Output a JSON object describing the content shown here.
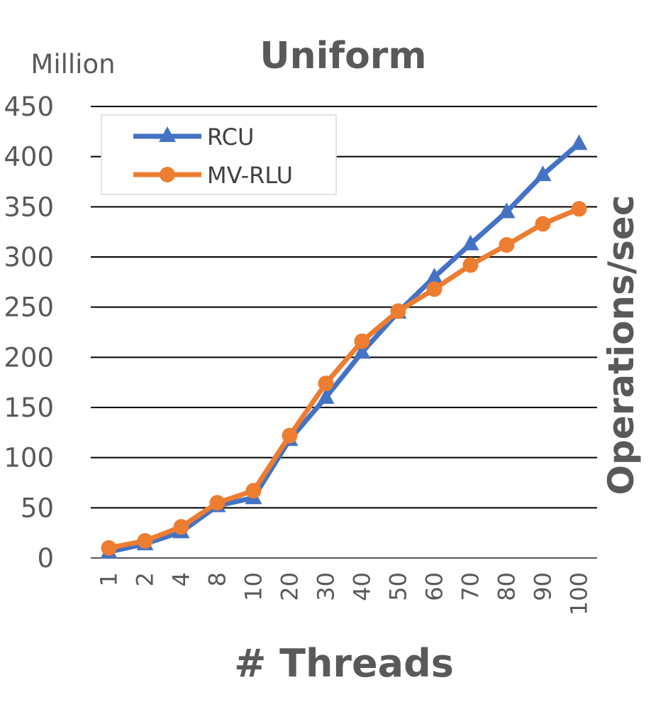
{
  "chart_data": {
    "type": "line",
    "title": "Uniform",
    "unit_label": "Million",
    "xlabel": "# Threads",
    "ylabel": "Operations/sec",
    "categories": [
      "1",
      "2",
      "4",
      "8",
      "10",
      "20",
      "30",
      "40",
      "50",
      "60",
      "70",
      "80",
      "90",
      "100"
    ],
    "ylim": [
      0,
      450
    ],
    "yticks": [
      0,
      50,
      100,
      150,
      200,
      250,
      300,
      350,
      400,
      450
    ],
    "grid": true,
    "legend_position": "top-left",
    "series": [
      {
        "name": "RCU",
        "color": "#4472C4",
        "marker": "triangle",
        "values": [
          6,
          14,
          26,
          52,
          60,
          118,
          160,
          205,
          245,
          280,
          313,
          345,
          382,
          413
        ]
      },
      {
        "name": "MV-RLU",
        "color": "#ED7D31",
        "marker": "circle",
        "values": [
          10,
          17,
          31,
          55,
          67,
          122,
          174,
          216,
          246,
          268,
          292,
          312,
          333,
          348
        ]
      }
    ]
  }
}
